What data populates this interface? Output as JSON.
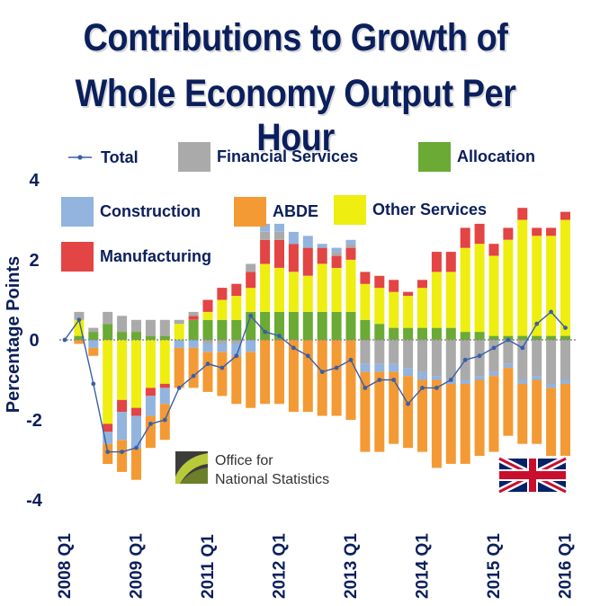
{
  "title_line1": "Contributions to Growth of",
  "title_line2": "Whole Economy Output Per Hour",
  "logo": {
    "line1": "Office for",
    "line2": "National Statistics"
  },
  "colors": {
    "Financial Services": "#aaaaaa",
    "Allocation": "#6aaa35",
    "Construction": "#92b4de",
    "ABDE": "#f39a34",
    "Other Services": "#eeee10",
    "Manufacturing": "#e34444",
    "Total": "#3a5ea8",
    "text": "#0b1f5c"
  },
  "chart_data": {
    "type": "bar",
    "stacked": true,
    "title": "Contributions to Growth of Whole Economy Output Per Hour",
    "ylabel": "Percentage Points",
    "ylim": [
      -4,
      4
    ],
    "yticks": [
      4,
      2,
      0,
      -2,
      -4
    ],
    "xtick_labels": [
      {
        "index": 0,
        "label": "2008 Q1"
      },
      {
        "index": 5,
        "label": "2009 Q1"
      },
      {
        "index": 10,
        "label": "2011 Q1"
      },
      {
        "index": 15,
        "label": "2012 Q1"
      },
      {
        "index": 20,
        "label": "2013 Q1"
      },
      {
        "index": 25,
        "label": "2014 Q1"
      },
      {
        "index": 30,
        "label": "2015 Q1"
      },
      {
        "index": 35,
        "label": "2016 Q1"
      }
    ],
    "legend_order": [
      "Total",
      "Financial Services",
      "Allocation",
      "Construction",
      "ABDE",
      "Other Services",
      "Manufacturing"
    ],
    "series": [
      {
        "name": "Allocation",
        "values": [
          0,
          0.1,
          0.2,
          0.4,
          0.2,
          0.2,
          0.1,
          0.1,
          0,
          0.5,
          0.5,
          0.5,
          0.5,
          0.7,
          0.7,
          0.7,
          0.7,
          0.7,
          0.7,
          0.7,
          0.7,
          0.5,
          0.4,
          0.3,
          0.3,
          0.3,
          0.3,
          0.3,
          0.2,
          0.2,
          0.1,
          0.1,
          0.1,
          0.1,
          0.1,
          0.1
        ]
      },
      {
        "name": "Other Services",
        "values": [
          0,
          0.4,
          0,
          -2.1,
          -1.5,
          -1.7,
          -1.2,
          -1.1,
          0.4,
          0,
          0.2,
          0.5,
          0.6,
          0.6,
          1.2,
          1.1,
          1,
          0.9,
          1.2,
          1.1,
          1.3,
          0.9,
          0.9,
          0.9,
          0.8,
          1,
          1.4,
          1.4,
          2.1,
          2.2,
          2,
          2.4,
          2.9,
          2.5,
          2.5,
          2.9
        ]
      },
      {
        "name": "Manufacturing",
        "values": [
          0,
          0,
          0,
          -0.2,
          -0.3,
          -0.2,
          -0.2,
          -0.1,
          0,
          0.1,
          0.3,
          0.3,
          0.3,
          0.4,
          0.6,
          0.7,
          0.7,
          0.7,
          0.4,
          0.3,
          0.3,
          0.3,
          0.3,
          0.3,
          0.1,
          0.2,
          0.5,
          0.5,
          0.5,
          0.5,
          0.3,
          0.3,
          0.3,
          0.2,
          0.2,
          0.2
        ]
      },
      {
        "name": "Financial Services",
        "values": [
          0,
          0.2,
          0.1,
          0.3,
          0.4,
          0.3,
          0.4,
          0.4,
          0.1,
          0.1,
          -0.1,
          -0.1,
          -0.1,
          0.2,
          0.2,
          0.2,
          0,
          0,
          0,
          0.1,
          0.1,
          -0.6,
          -0.6,
          -0.6,
          -0.7,
          -0.8,
          -0.9,
          -1,
          -1,
          -0.9,
          -0.8,
          -0.6,
          -1,
          -0.9,
          -1.1,
          -1
        ]
      },
      {
        "name": "Construction",
        "values": [
          0,
          0,
          -0.2,
          -0.3,
          -0.7,
          -0.8,
          -0.5,
          -0.4,
          -0.2,
          -0.2,
          -0.2,
          -0.2,
          -0.3,
          -0.3,
          0.2,
          0.2,
          0.3,
          0.3,
          0.1,
          0.1,
          0.1,
          -0.2,
          -0.2,
          -0.2,
          -0.2,
          -0.2,
          -0.1,
          -0.1,
          -0.1,
          -0.1,
          -0.1,
          -0.1,
          -0.1,
          -0.1,
          -0.1,
          -0.1
        ]
      },
      {
        "name": "ABDE",
        "values": [
          0,
          -0.1,
          -0.2,
          -0.5,
          -0.8,
          -0.8,
          -0.8,
          -0.9,
          -1,
          -1,
          -1,
          -1.1,
          -1.2,
          -1.4,
          -1.6,
          -1.6,
          -1.8,
          -1.8,
          -1.9,
          -1.9,
          -2,
          -2,
          -2,
          -1.8,
          -1.8,
          -1.8,
          -2.2,
          -2,
          -2,
          -1.9,
          -1.9,
          -1.7,
          -1.5,
          -1.6,
          -1.7,
          -1.8
        ]
      },
      {
        "name": "Total",
        "values": [
          0,
          0.5,
          -1.1,
          -2.8,
          -2.8,
          -2.7,
          -2.1,
          -2,
          -1.2,
          -0.9,
          -0.6,
          -0.7,
          -0.4,
          0.6,
          0.2,
          0.1,
          -0.2,
          -0.4,
          -0.8,
          -0.7,
          -0.5,
          -1.2,
          -1,
          -1,
          -1.6,
          -1.2,
          -1.2,
          -1,
          -0.5,
          -0.4,
          -0.2,
          0,
          -0.2,
          0.4,
          0.7,
          0.3
        ]
      }
    ]
  }
}
